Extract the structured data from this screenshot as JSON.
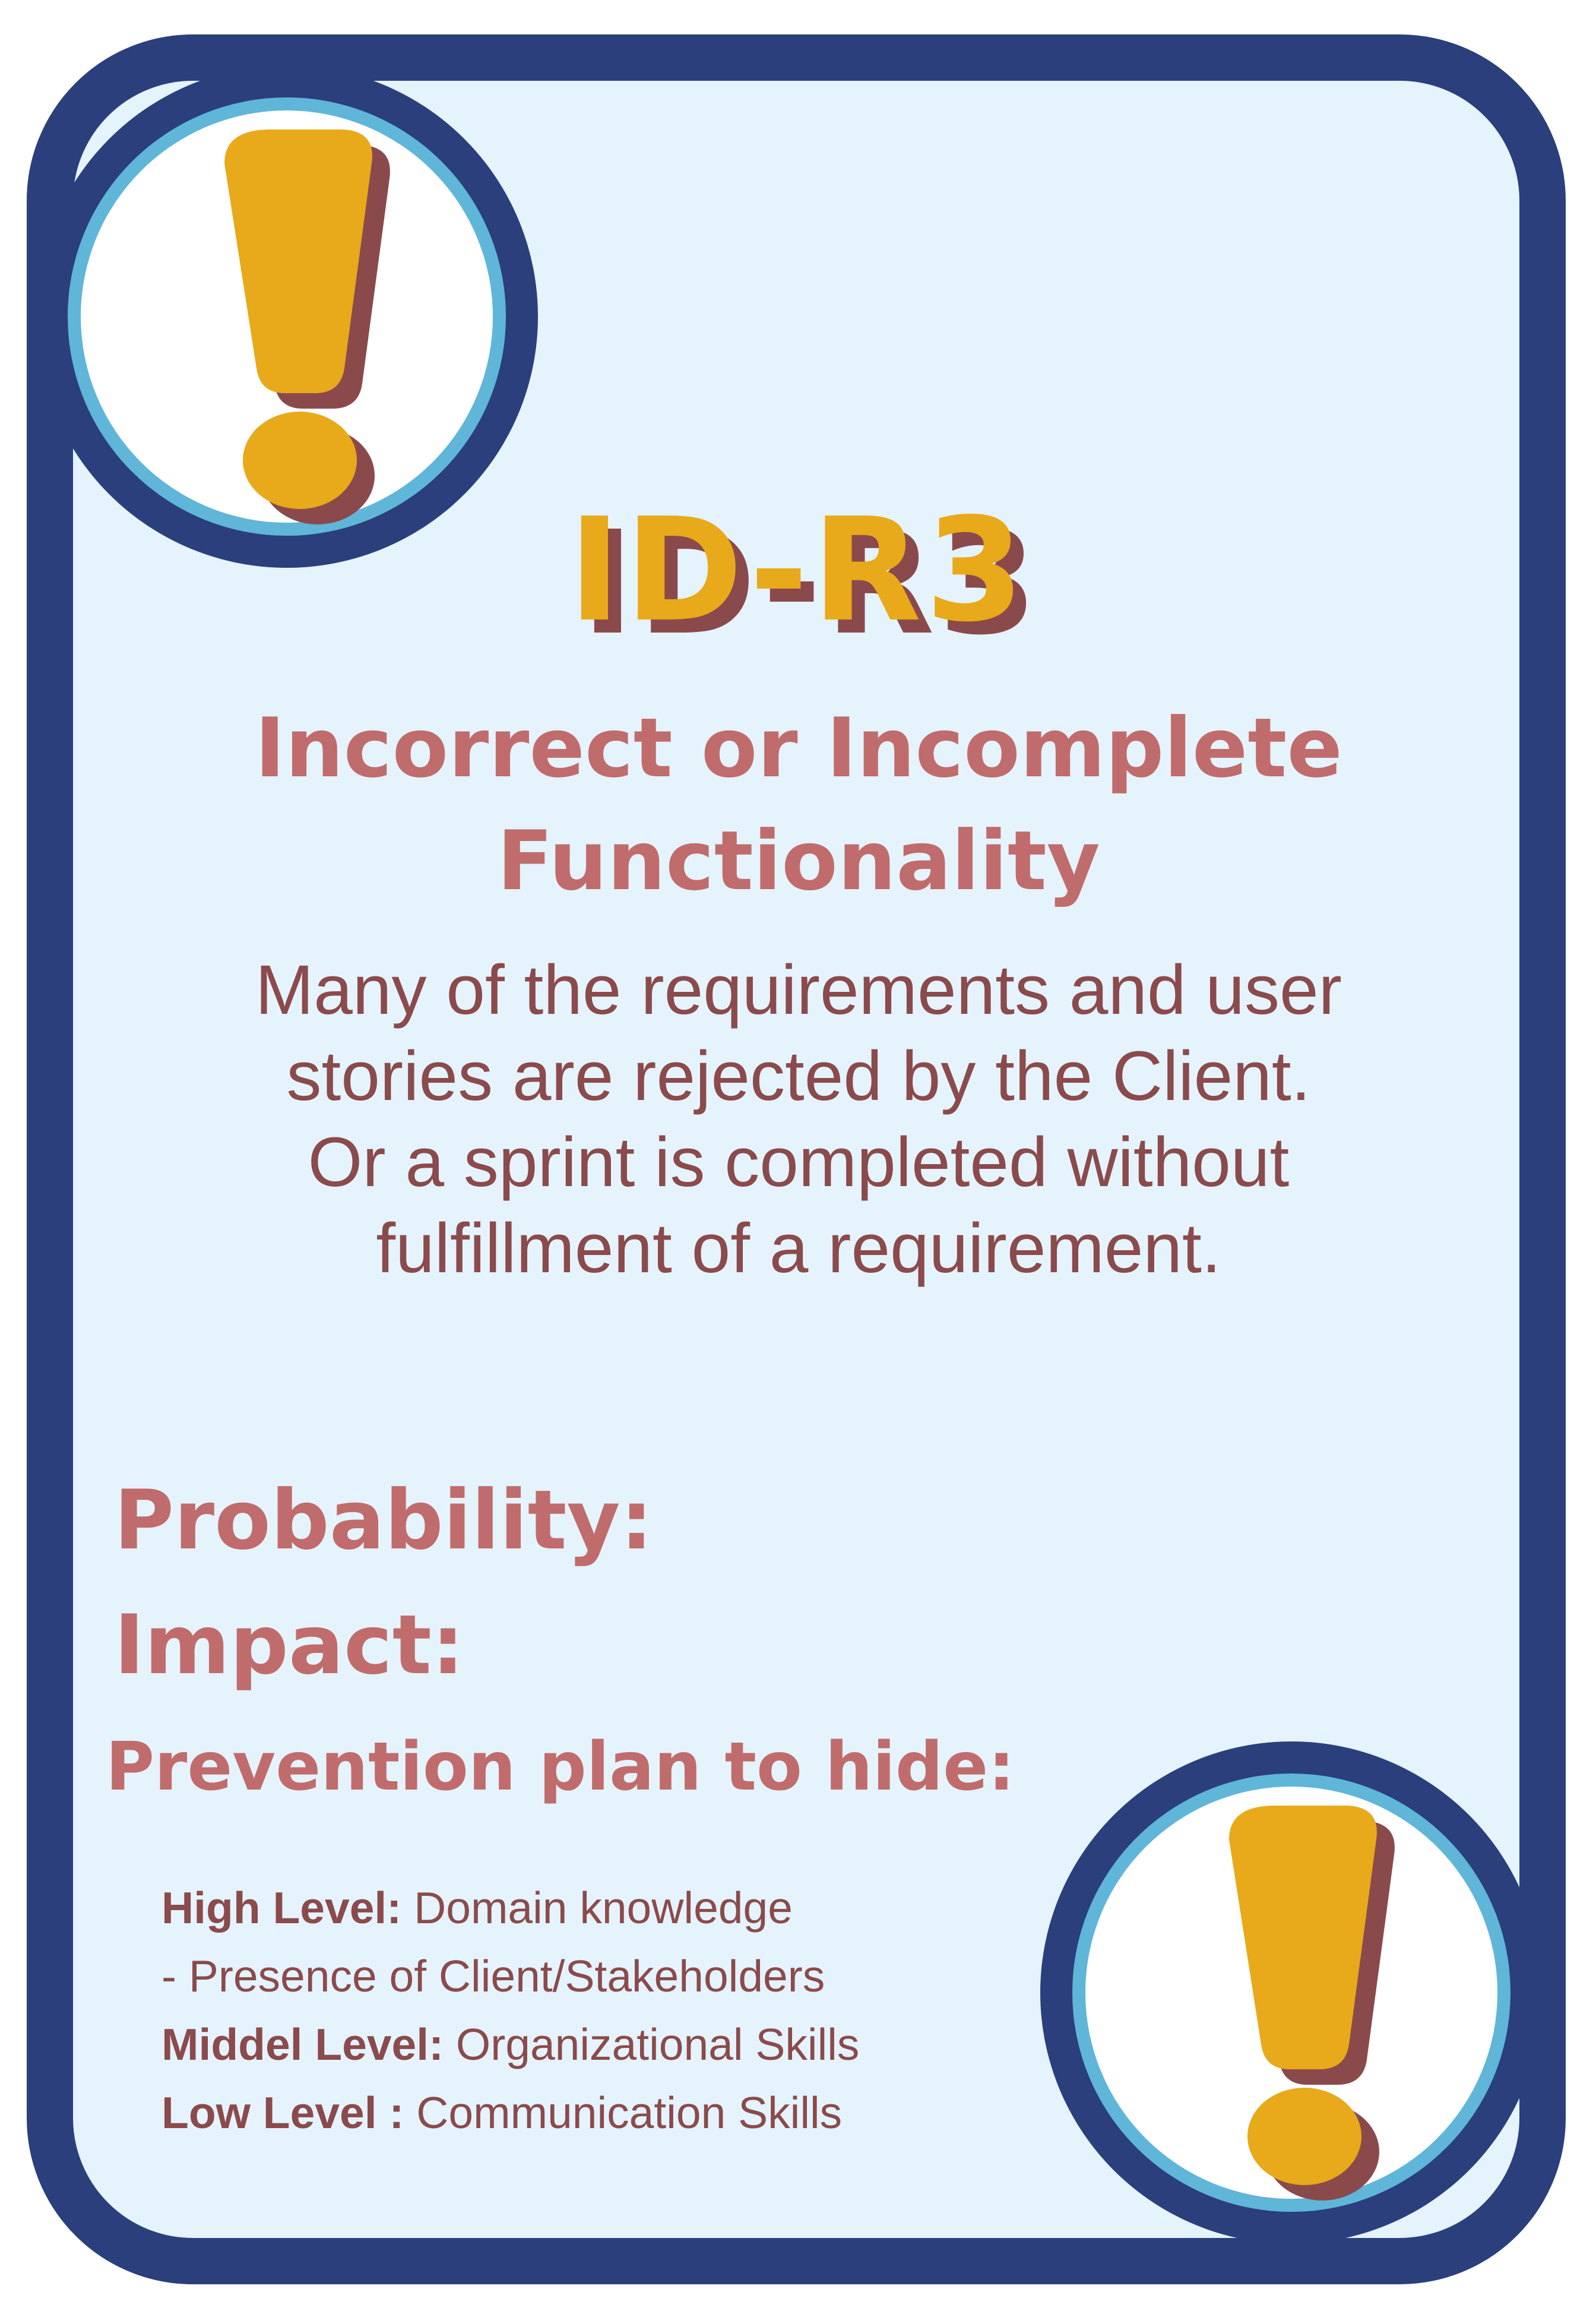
{
  "card": {
    "id": "ID-R3",
    "title_line1": "Incorrect or Incomplete",
    "title_line2": "Functionality",
    "description_lines": [
      "Many of the requirements and user",
      "stories are rejected by the Client.",
      "Or a sprint is completed without",
      "fulfillment of a requirement."
    ],
    "probability_label": "Probability:",
    "impact_label": "Impact:",
    "prevention_label": "Prevention plan to hide:",
    "levels": {
      "high_name": "High Level:",
      "high_value": " Domain knowledge",
      "high_value_2": "- Presence of Client/Stakeholders",
      "middle_name": "Middel Level:",
      "middle_value": " Organizational Skills",
      "low_name": "Low Level :",
      "low_value": " Communication Skills"
    }
  },
  "colors": {
    "border": "#2a3f7c",
    "ring": "#5fb6d8",
    "background": "#e5f3fc",
    "accent_yellow": "#e8a91a",
    "shadow_brown": "#8a4a4c",
    "heading_rose": "#c06c6c",
    "body_brown": "#8b4a4c"
  },
  "icons": [
    "exclamation-icon",
    "exclamation-icon"
  ]
}
